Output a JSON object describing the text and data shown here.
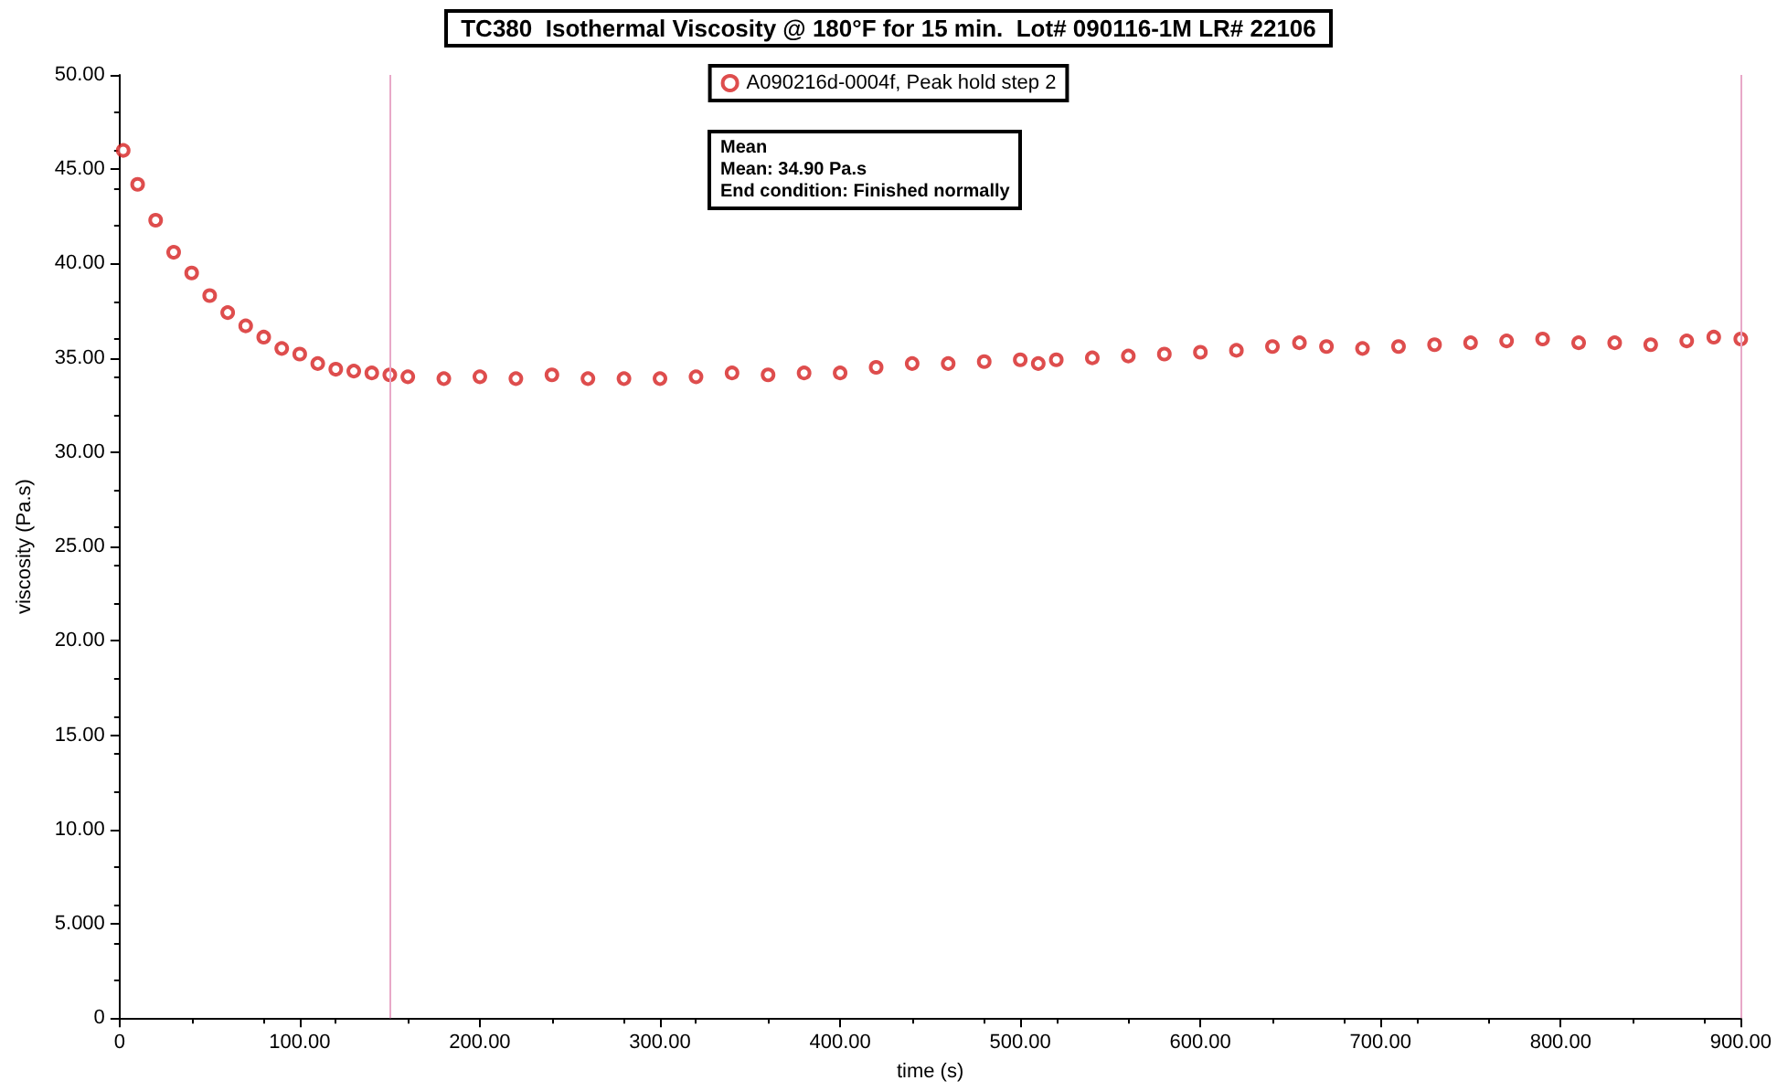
{
  "chart_data": {
    "type": "scatter",
    "title": "TC380  Isothermal Viscosity @ 180°F for 15 min.  Lot# 090116-1M LR# 22106",
    "xlabel": "time (s)",
    "ylabel": "viscosity (Pa.s)",
    "annotations": [
      "Mean\nMean: 34.90 Pa.s\nEnd condition: Finished normally"
    ],
    "x": [
      2,
      10,
      20,
      30,
      40,
      50,
      60,
      70,
      80,
      90,
      100,
      110,
      120,
      130,
      140,
      150,
      160,
      180,
      200,
      220,
      240,
      260,
      280,
      300,
      320,
      340,
      360,
      380,
      400,
      420,
      440,
      460,
      480,
      500,
      510,
      520,
      540,
      560,
      580,
      600,
      620,
      640,
      655,
      670,
      690,
      710,
      730,
      750,
      770,
      790,
      810,
      830,
      850,
      870,
      885,
      900
    ],
    "series": [
      {
        "name": "A090216d-0004f, Peak hold step 2",
        "color": "#d62020",
        "values": [
          46.0,
          44.2,
          42.3,
          40.6,
          39.5,
          38.3,
          37.4,
          36.7,
          36.1,
          35.5,
          35.2,
          34.7,
          34.4,
          34.3,
          34.2,
          34.1,
          34.0,
          33.9,
          34.0,
          33.9,
          34.1,
          33.9,
          33.9,
          33.9,
          34.0,
          34.2,
          34.1,
          34.2,
          34.2,
          34.5,
          34.7,
          34.7,
          34.8,
          34.9,
          34.7,
          34.9,
          35.0,
          35.1,
          35.2,
          35.3,
          35.4,
          35.6,
          35.8,
          35.6,
          35.5,
          35.6,
          35.7,
          35.8,
          35.9,
          36.0,
          35.8,
          35.8,
          35.7,
          35.9,
          36.1,
          36.0
        ]
      }
    ],
    "xlim": [
      0,
      900
    ],
    "xticks": [
      0,
      {
        "value": 100,
        "label": "100.00"
      },
      {
        "value": 200,
        "label": "200.00"
      },
      {
        "value": 300,
        "label": "300.00"
      },
      {
        "value": 400,
        "label": "400.00"
      },
      {
        "value": 500,
        "label": "500.00"
      },
      {
        "value": 600,
        "label": "600.00"
      },
      {
        "value": 700,
        "label": "700.00"
      },
      {
        "value": 800,
        "label": "800.00"
      },
      {
        "value": 900,
        "label": "900.00"
      }
    ],
    "ylim": [
      0,
      50
    ],
    "yticks": [
      0,
      {
        "value": 5,
        "label": "5.000"
      },
      {
        "value": 10,
        "label": "10.00"
      },
      {
        "value": 15,
        "label": "15.00"
      },
      {
        "value": 20,
        "label": "20.00"
      },
      {
        "value": 25,
        "label": "25.00"
      },
      {
        "value": 30,
        "label": "30.00"
      },
      {
        "value": 35,
        "label": "35.00"
      },
      {
        "value": 40,
        "label": "40.00"
      },
      {
        "value": 45,
        "label": "45.00"
      },
      {
        "value": 50,
        "label": "50.00"
      }
    ],
    "ref_lines": [
      {
        "axis": "x",
        "value": 150,
        "color": "#e8a8c8"
      },
      {
        "axis": "x",
        "value": 900,
        "color": "#e8a8c8"
      }
    ],
    "marker": "circle",
    "legend": "top",
    "grid": false
  }
}
